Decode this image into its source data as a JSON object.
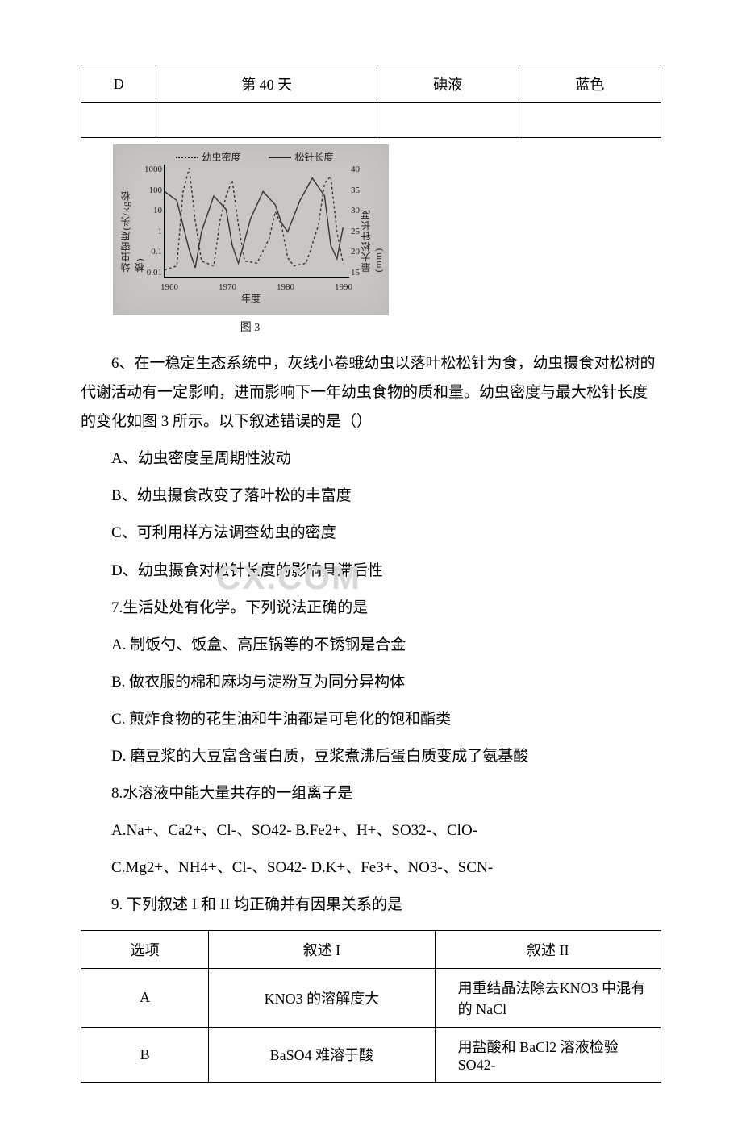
{
  "top_table": {
    "row": [
      "D",
      "第 40 天",
      "碘液",
      "蓝色"
    ]
  },
  "figure3": {
    "type": "line",
    "legend": {
      "series1": "幼虫密度",
      "series2": "松针长度"
    },
    "y_left_label": "幼虫密度(头/kg松枝)",
    "y_right_label": "最大松针长度(mm)",
    "x_label": "年度",
    "caption": "图 3",
    "y_left_ticks": [
      "1000",
      "100",
      "10",
      "1",
      "0.1",
      "0.01"
    ],
    "y_right_ticks": [
      "40",
      "35",
      "30",
      "25",
      "20",
      "15"
    ],
    "x_ticks": [
      "1960",
      "1970",
      "1980",
      "1990"
    ],
    "colors": {
      "background": "#c9c7c3",
      "axis": "#000000",
      "text": "#222222",
      "series1": "#333333",
      "series2": "#333333"
    },
    "y_left_scale": "log",
    "y_right_scale": "linear",
    "y_right_lim": [
      15,
      40
    ],
    "x_lim": [
      1960,
      1990
    ],
    "series1_points": [
      [
        1960,
        0.02
      ],
      [
        1962,
        0.03
      ],
      [
        1963,
        60
      ],
      [
        1964,
        700
      ],
      [
        1965,
        3
      ],
      [
        1966,
        0.05
      ],
      [
        1968,
        0.03
      ],
      [
        1969,
        3
      ],
      [
        1970,
        40
      ],
      [
        1971,
        200
      ],
      [
        1972,
        2
      ],
      [
        1973,
        0.05
      ],
      [
        1975,
        0.04
      ],
      [
        1977,
        0.5
      ],
      [
        1978,
        8
      ],
      [
        1979,
        2
      ],
      [
        1980,
        0.07
      ],
      [
        1981,
        0.03
      ],
      [
        1983,
        0.04
      ],
      [
        1985,
        2
      ],
      [
        1986,
        150
      ],
      [
        1987,
        300
      ],
      [
        1988,
        1
      ],
      [
        1989,
        0.04
      ]
    ],
    "series2_points": [
      [
        1960,
        34
      ],
      [
        1962,
        32
      ],
      [
        1964,
        21
      ],
      [
        1965,
        17
      ],
      [
        1966,
        25
      ],
      [
        1968,
        33
      ],
      [
        1970,
        30
      ],
      [
        1971,
        22
      ],
      [
        1972,
        18
      ],
      [
        1974,
        28
      ],
      [
        1976,
        34
      ],
      [
        1978,
        31
      ],
      [
        1979,
        27
      ],
      [
        1980,
        25
      ],
      [
        1982,
        32
      ],
      [
        1984,
        37
      ],
      [
        1986,
        33
      ],
      [
        1987,
        22
      ],
      [
        1988,
        19
      ],
      [
        1989,
        26
      ]
    ],
    "line_width": 1.4,
    "series1_dash": "3,3",
    "series2_dash": "none"
  },
  "q6": {
    "stem": "6、在一稳定生态系统中，灰线小卷蛾幼虫以落叶松松针为食，幼虫摄食对松树的代谢活动有一定影响，进而影响下一年幼虫食物的质和量。幼虫密度与最大松针长度的变化如图 3 所示。以下叙述错误的是（）",
    "A": "A、幼虫密度呈周期性波动",
    "B": "B、幼虫摄食改变了落叶松的丰富度",
    "C": "C、可利用样方法调查幼虫的密度",
    "D": "D、幼虫摄食对松针长度的影响具滞后性"
  },
  "q7": {
    "stem": "7.生活处处有化学。下列说法正确的是",
    "A": "A. 制饭勺、饭盒、高压锅等的不锈钢是合金",
    "B": "B. 做衣服的棉和麻均与淀粉互为同分异构体",
    "C": "C. 煎炸食物的花生油和牛油都是可皂化的饱和酯类",
    "D": "D. 磨豆浆的大豆富含蛋白质，豆浆煮沸后蛋白质变成了氨基酸"
  },
  "q8": {
    "stem": "8.水溶液中能大量共存的一组离子是",
    "line1": "A.Na+、Ca2+、Cl-、SO42- B.Fe2+、H+、SO32-、ClO-",
    "line2": "C.Mg2+、NH4+、Cl-、SO42- D.K+、Fe3+、NO3-、SCN-"
  },
  "q9": {
    "stem": "9. 下列叙述 I 和 II 均正确并有因果关系的是",
    "headers": [
      "选项",
      "叙述 I",
      "叙述 II"
    ],
    "rows": [
      {
        "opt": "A",
        "s1": "KNO3 的溶解度大",
        "s2": "用重结晶法除去KNO3 中混有的 NaCl"
      },
      {
        "opt": "B",
        "s1": "BaSO4 难溶于酸",
        "s2": "用盐酸和 BaCl2 溶液检验 SO42-"
      }
    ]
  },
  "watermark": "CX.COM"
}
